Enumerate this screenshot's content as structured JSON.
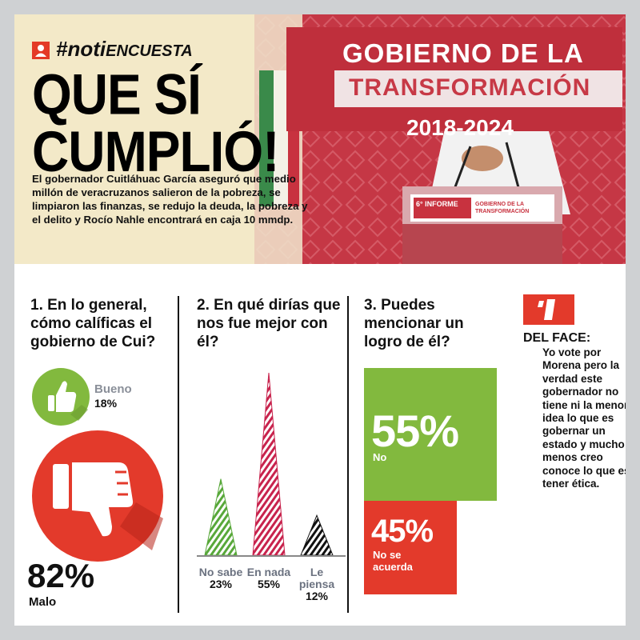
{
  "header": {
    "hashtag_bold": "#noti",
    "hashtag_rest": "ENCUESTA",
    "headline_line1": "QUE SÍ",
    "headline_line2": "CUMPLIÓ!",
    "intro": "El gobernador Cuitláhuac García aseguró que medio millón de veracruzanos salieron de la pobreza, se limpiaron las finanzas, se redujo la deuda, la pobreza y el delito y Rocío Nahle encontrará en caja 10 mmdp."
  },
  "hero": {
    "banner_line1": "GOBIERNO DE LA",
    "banner_line2": "TRANSFORMACIÓN",
    "banner_line3": "2018-2024",
    "podium_line1": "6° INFORME",
    "podium_line2": "GOBIERNO DE LA TRANSFORMACIÓN"
  },
  "questions": {
    "q1": "1. En lo general, cómo calíficas el gobierno de Cui?",
    "q2": "2. En qué dirías que nos fue mejor con él?",
    "q3": "3. Puedes mencionar un logro de él?"
  },
  "colors": {
    "green": "#82b93e",
    "red": "#e33a2b",
    "crimson": "#c8234d",
    "black": "#111111"
  },
  "chart_data": [
    {
      "type": "pie",
      "title": "1. En lo general, cómo calíficas el gobierno de Cui?",
      "categories": [
        "Bueno",
        "Malo"
      ],
      "values": [
        18,
        82
      ],
      "labels": [
        "18%",
        "82%"
      ],
      "icons": [
        "thumbs-up-icon",
        "thumbs-down-icon"
      ],
      "colors": [
        "#82b93e",
        "#e33a2b"
      ]
    },
    {
      "type": "bar",
      "title": "2. En qué dirías que nos fue mejor con él?",
      "categories": [
        "No sabe",
        "En nada",
        "Le piensa"
      ],
      "values": [
        23,
        55,
        12
      ],
      "labels": [
        "23%",
        "55%",
        "12%"
      ],
      "colors": [
        "#58a83a",
        "#c8234d",
        "#111111"
      ],
      "ylim": [
        0,
        55
      ]
    },
    {
      "type": "bar",
      "title": "3. Puedes mencionar un logro de él?",
      "categories": [
        "No",
        "No se acuerda"
      ],
      "values": [
        55,
        45
      ],
      "labels": [
        "55%",
        "45%"
      ],
      "colors": [
        "#82b93e",
        "#e33a2b"
      ]
    }
  ],
  "face": {
    "title": "DEL FACE:",
    "text": "Yo vote por Morena pero la verdad este gobernador no tiene ni la menor idea lo que es gobernar un estado y mucho menos creo conoce lo que es tener ética."
  }
}
